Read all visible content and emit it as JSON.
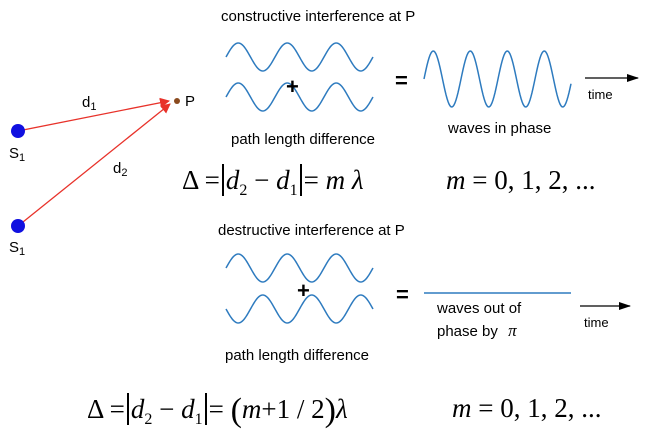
{
  "colors": {
    "wave": "#2e7bbf",
    "ray": "#e8322a",
    "source": "#1010e0",
    "point": "#8a4a1e",
    "line": "#000000"
  },
  "geometry_labels": {
    "s1_top": "S",
    "s1_top_sub": "1",
    "s1_bottom": "S",
    "s1_bottom_sub": "1",
    "d1": "d",
    "d1_sub": "1",
    "d2": "d",
    "d2_sub": "2",
    "point": "P"
  },
  "constructive": {
    "heading": "constructive interference at P",
    "plus": "+",
    "equals": "=",
    "result_label": "waves in phase",
    "time_label": "time",
    "path_label": "path length difference",
    "formula": {
      "delta": "Δ",
      "eq1": "=",
      "d2": "d",
      "d2_sub": "2",
      "minus": "−",
      "d1": "d",
      "d1_sub": "1",
      "eq2": "=",
      "m": "m",
      "lambda": "λ",
      "m_range": "m",
      "m_eq": "=",
      "m_values": "0, 1, 2, ..."
    }
  },
  "destructive": {
    "heading": "destructive interference at P",
    "plus": "+",
    "equals": "=",
    "result_label_1": "waves out of",
    "result_label_2": "phase by",
    "pi": "π",
    "time_label": "time",
    "path_label": "path length difference",
    "formula": {
      "delta": "Δ",
      "eq1": "=",
      "d2": "d",
      "d2_sub": "2",
      "minus": "−",
      "d1": "d",
      "d1_sub": "1",
      "eq2": "=",
      "open": "(",
      "m": "m",
      "plus_half": "+1 / 2",
      "close": ")",
      "lambda": "λ",
      "m_range": "m",
      "m_eq": "=",
      "m_values": "0, 1, 2, ..."
    }
  }
}
